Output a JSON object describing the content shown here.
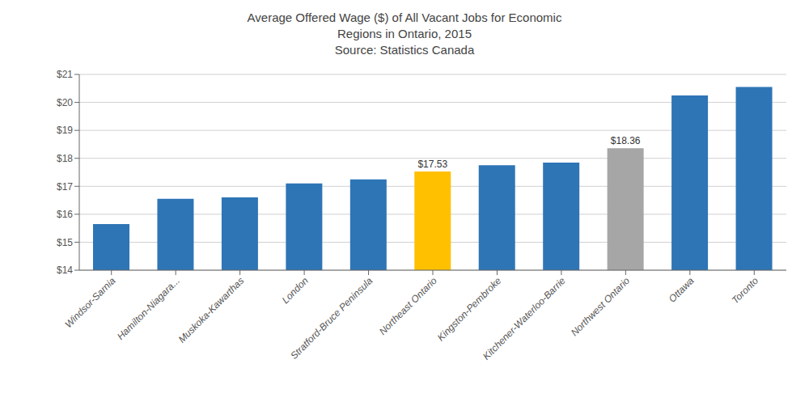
{
  "chart_data": {
    "type": "bar",
    "title": "Average Offered Wage ($) of All Vacant Jobs for Economic\nRegions in Ontario, 2015\nSource: Statistics Canada",
    "categories": [
      "Windsor-Sarnia",
      "Hamilton-Niagara...",
      "Muskoka-Kawarthas",
      "London",
      "Stratford-Bruce Peninsula",
      "Northeast Ontario",
      "Kingston-Pembroke",
      "Kitchener-Waterloo-Barrie",
      "Northwest Ontario",
      "Ottawa",
      "Toronto"
    ],
    "values": [
      15.65,
      16.55,
      16.6,
      17.1,
      17.25,
      17.53,
      17.75,
      17.85,
      18.36,
      20.25,
      20.55
    ],
    "colors": [
      "#2e75b6",
      "#2e75b6",
      "#2e75b6",
      "#2e75b6",
      "#2e75b6",
      "#ffc000",
      "#2e75b6",
      "#2e75b6",
      "#a6a6a6",
      "#2e75b6",
      "#2e75b6"
    ],
    "annotations": [
      {
        "category": "Northeast Ontario",
        "text": "$17.53"
      },
      {
        "category": "Northwest Ontario",
        "text": "$18.36"
      }
    ],
    "ylim": [
      14,
      21
    ],
    "yticks": [
      {
        "value": 14,
        "label": "$14"
      },
      {
        "value": 15,
        "label": "$15"
      },
      {
        "value": 16,
        "label": "$16"
      },
      {
        "value": 17,
        "label": "$17"
      },
      {
        "value": 18,
        "label": "$18"
      },
      {
        "value": 19,
        "label": "$19"
      },
      {
        "value": 20,
        "label": "$20"
      },
      {
        "value": 21,
        "label": "$21"
      }
    ],
    "grid": true
  }
}
